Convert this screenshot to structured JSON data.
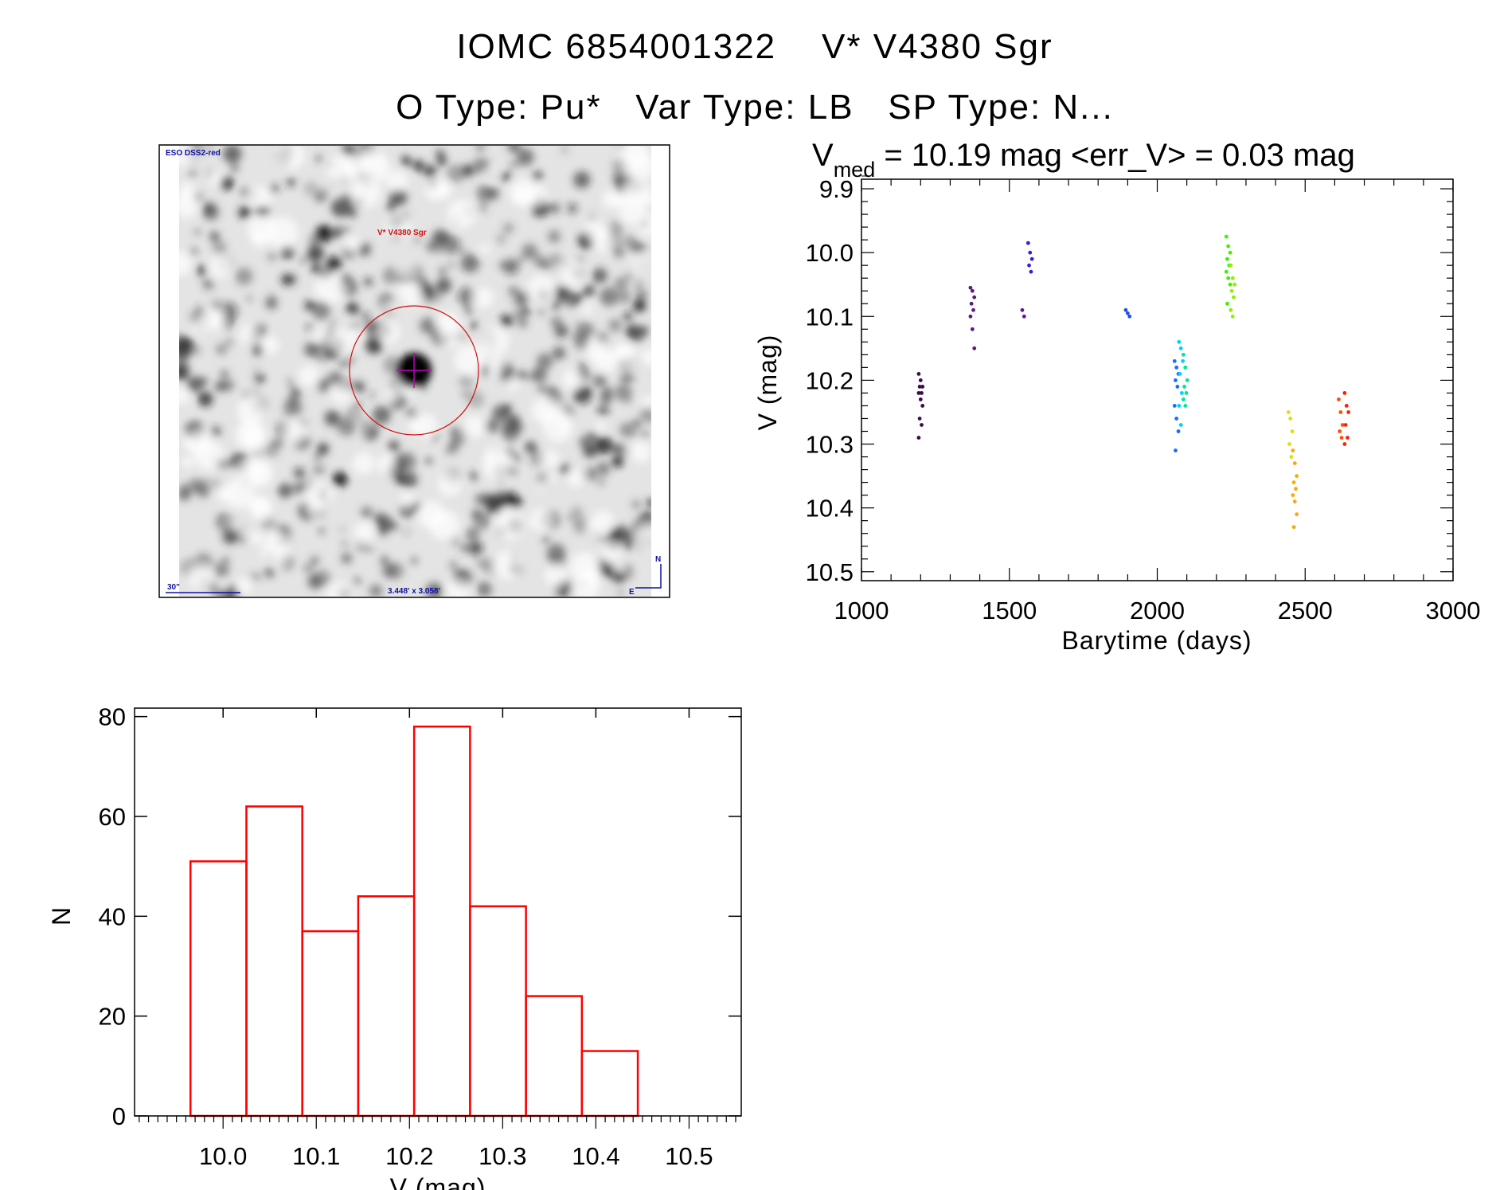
{
  "title": {
    "line1": "IOMC 6854001322    V* V4380 Sgr",
    "line2": "O Type: Pu*   Var Type: LB   SP Type: N..."
  },
  "image_panel": {
    "survey": "ESO DSS2-red",
    "target_label": "V* V4380 Sgr",
    "scale_bar": "30\"",
    "field_size": "3.448' x 3.058'",
    "north": "N",
    "east": "E",
    "circle_color": "#d01010",
    "cross_color": "#c000c0",
    "label_color": "#1010a0"
  },
  "chart_data": [
    {
      "type": "scatter",
      "title_main": "V",
      "title_sub": "med",
      "title_rest": " = 10.19 mag <err_V> = 0.03 mag",
      "xlabel": "Barytime (days)",
      "ylabel": "V (mag)",
      "xlim": [
        1000,
        3000
      ],
      "ylim": [
        10.514,
        9.885
      ],
      "y_inverted": true,
      "xticks": [
        "1000",
        "1500",
        "2000",
        "2500",
        "3000"
      ],
      "yticks": [
        "9.9",
        "10.0",
        "10.1",
        "10.2",
        "10.3",
        "10.4",
        "10.5"
      ],
      "grid": false,
      "groups": [
        {
          "x": 1200,
          "color": "#3c0a4a",
          "y": [
            10.19,
            10.2,
            10.21,
            10.21,
            10.22,
            10.22,
            10.23,
            10.24,
            10.26,
            10.27,
            10.29
          ]
        },
        {
          "x": 1375,
          "color": "#5a1a80",
          "y": [
            10.055,
            10.06,
            10.07,
            10.08,
            10.09,
            10.1,
            10.12,
            10.15
          ]
        },
        {
          "x": 1550,
          "color": "#5a1a9a",
          "y": [
            10.09,
            10.1
          ]
        },
        {
          "x": 1570,
          "color": "#3020d8",
          "y": [
            9.985,
            10.0,
            10.01,
            10.02,
            10.03
          ]
        },
        {
          "x": 1900,
          "color": "#2050e8",
          "y": [
            10.09,
            10.095,
            10.1
          ]
        },
        {
          "x": 2065,
          "color": "#1070ff",
          "y": [
            10.17,
            10.18,
            10.19,
            10.2,
            10.21,
            10.24,
            10.26,
            10.28,
            10.31
          ]
        },
        {
          "x": 2080,
          "color": "#00d0ff",
          "y": [
            10.14,
            10.15,
            10.17,
            10.19,
            10.22,
            10.24,
            10.27
          ]
        },
        {
          "x": 2095,
          "color": "#00e890",
          "y": [
            10.16,
            10.18,
            10.2,
            10.21,
            10.22,
            10.23,
            10.24
          ]
        },
        {
          "x": 2240,
          "color": "#40f000",
          "y": [
            9.975,
            9.99,
            10.0,
            10.01,
            10.02,
            10.03,
            10.04,
            10.05,
            10.08
          ]
        },
        {
          "x": 2255,
          "color": "#90f000",
          "y": [
            10.02,
            10.04,
            10.05,
            10.06,
            10.07,
            10.09,
            10.1
          ]
        },
        {
          "x": 2450,
          "color": "#e0e000",
          "y": [
            10.25,
            10.26,
            10.28,
            10.3,
            10.32
          ]
        },
        {
          "x": 2465,
          "color": "#ffa800",
          "y": [
            10.31,
            10.33,
            10.35,
            10.36,
            10.37,
            10.38,
            10.39,
            10.41,
            10.43
          ]
        },
        {
          "x": 2620,
          "color": "#ff5000",
          "y": [
            10.23,
            10.25,
            10.27,
            10.28,
            10.29
          ]
        },
        {
          "x": 2640,
          "color": "#ff2000",
          "y": [
            10.22,
            10.24,
            10.25,
            10.27,
            10.29,
            10.3
          ]
        }
      ]
    },
    {
      "type": "bar",
      "subtype": "histogram",
      "xlabel": "V (mag)",
      "ylabel": "N",
      "xlim": [
        9.905,
        10.556
      ],
      "ylim": [
        0,
        81.7
      ],
      "xticks": [
        "10.0",
        "10.1",
        "10.2",
        "10.3",
        "10.4",
        "10.5"
      ],
      "yticks": [
        "0",
        "20",
        "40",
        "60",
        "80"
      ],
      "bin_edges": [
        9.965,
        10.025,
        10.085,
        10.145,
        10.205,
        10.265,
        10.325,
        10.385,
        10.445
      ],
      "values": [
        51,
        62,
        37,
        44,
        78,
        42,
        24,
        13
      ],
      "color": "#ff0000",
      "grid": false
    }
  ]
}
